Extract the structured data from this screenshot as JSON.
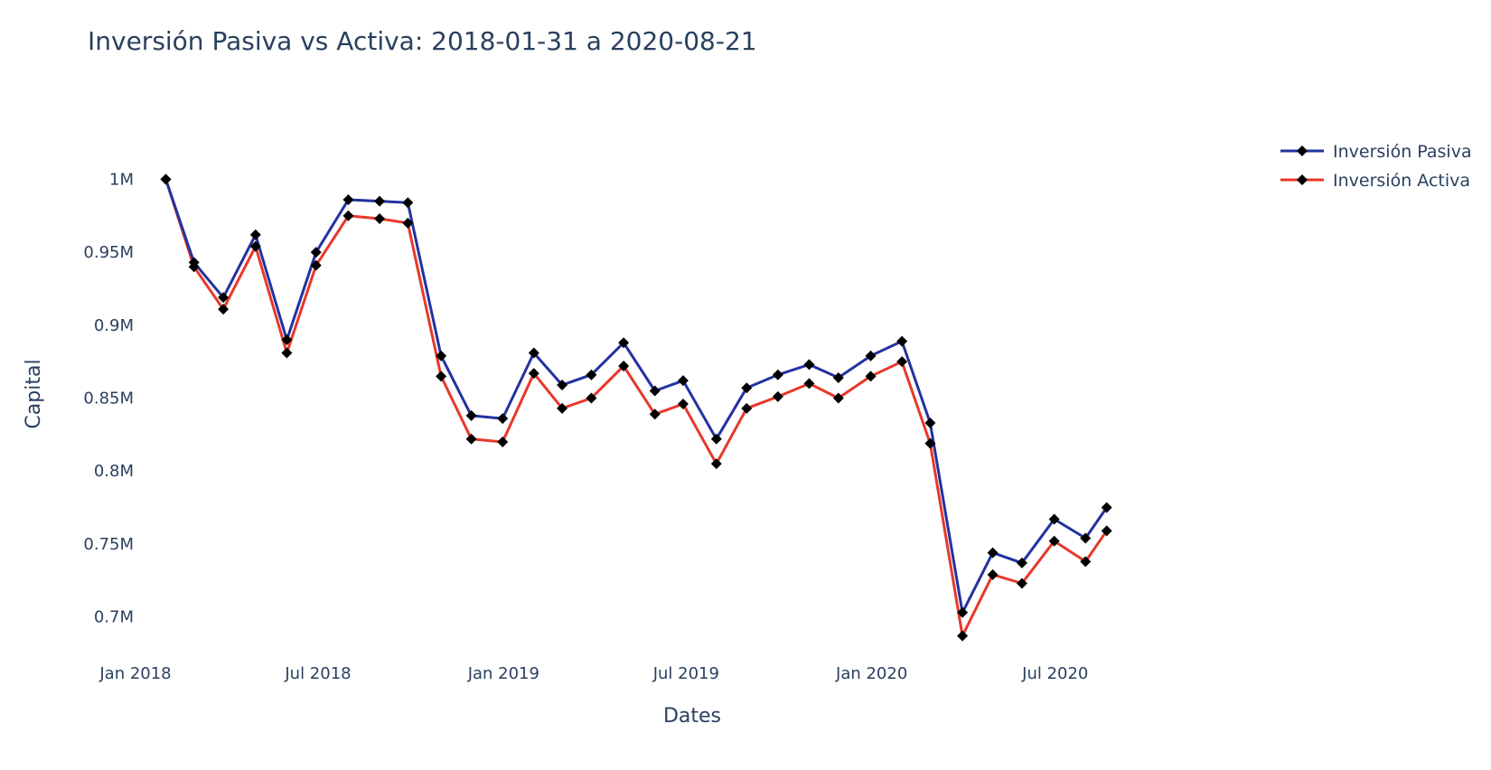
{
  "chart_data": {
    "type": "line",
    "title": "Inversión Pasiva vs Activa: 2018-01-31 a 2020-08-21",
    "xlabel": "Dates",
    "ylabel": "Capital",
    "x": [
      "2018-01-31",
      "2018-02-28",
      "2018-03-29",
      "2018-04-30",
      "2018-05-31",
      "2018-06-29",
      "2018-07-31",
      "2018-08-31",
      "2018-09-28",
      "2018-10-31",
      "2018-11-30",
      "2018-12-31",
      "2019-01-31",
      "2019-02-28",
      "2019-03-29",
      "2019-04-30",
      "2019-05-31",
      "2019-06-28",
      "2019-07-31",
      "2019-08-30",
      "2019-09-30",
      "2019-10-31",
      "2019-11-29",
      "2019-12-31",
      "2020-01-31",
      "2020-02-28",
      "2020-03-31",
      "2020-04-30",
      "2020-05-29",
      "2020-06-30",
      "2020-07-31",
      "2020-08-21"
    ],
    "series": [
      {
        "name": "Inversión Pasiva",
        "color": "#2232a0",
        "values": [
          1000000,
          943000,
          919000,
          962000,
          890000,
          950000,
          986000,
          985000,
          984000,
          879000,
          838000,
          836000,
          881000,
          859000,
          866000,
          888000,
          855000,
          862000,
          822000,
          857000,
          866000,
          873000,
          864000,
          879000,
          889000,
          833000,
          703000,
          744000,
          737000,
          767000,
          754000,
          775000
        ]
      },
      {
        "name": "Inversión Activa",
        "color": "#e8382a",
        "values": [
          1000000,
          940000,
          911000,
          954000,
          881000,
          941000,
          975000,
          973000,
          970000,
          865000,
          822000,
          820000,
          867000,
          843000,
          850000,
          872000,
          839000,
          846000,
          805000,
          843000,
          851000,
          860000,
          850000,
          865000,
          875000,
          819000,
          687000,
          729000,
          723000,
          752000,
          738000,
          759000
        ]
      }
    ],
    "marker": {
      "symbol": "diamond",
      "color": "#000000"
    },
    "x_ticks": [
      "2018-01-01",
      "2018-07-01",
      "2019-01-01",
      "2019-07-01",
      "2020-01-01",
      "2020-07-01"
    ],
    "x_tick_labels": [
      "Jan 2018",
      "Jul 2018",
      "Jan 2019",
      "Jul 2019",
      "Jan 2020",
      "Jul 2020"
    ],
    "xlim": [
      "2018-01-01",
      "2020-12-31"
    ],
    "y_ticks": [
      700000,
      750000,
      800000,
      850000,
      900000,
      950000,
      1000000
    ],
    "y_tick_labels": [
      "0.7M",
      "0.75M",
      "0.8M",
      "0.85M",
      "0.9M",
      "0.95M",
      "1M"
    ],
    "ylim": [
      675000,
      1030000
    ],
    "grid": false,
    "legend_position": "top-right"
  }
}
